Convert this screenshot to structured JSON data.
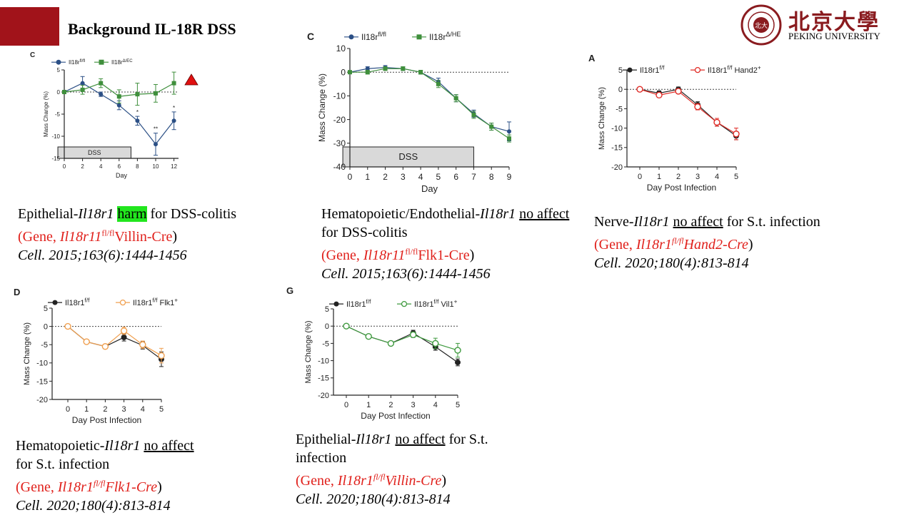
{
  "slide": {
    "title": "Background IL-18R DSS",
    "logo": {
      "cn": "北京大學",
      "en": "PEKING UNIVERSITY",
      "seal_text": "PEKING UNIVERSITY 1898"
    },
    "captions": [
      {
        "pre": "Epithelial-",
        "gene": "Il18r1",
        "mid": " ",
        "effect": "harm",
        "post": " for DSS-colitis",
        "gene_line_a": "(Gene, ",
        "gene_line_b": "Il18r11",
        "gene_line_sup": "fl/fl",
        "gene_line_c": "Villin-Cre",
        "gene_line_d": ")",
        "ref": "Cell. 2015;163(6):1444-1456"
      },
      {
        "pre": "Hematopoietic/Endothelial-",
        "gene": "Il18r1",
        "mid": " ",
        "effect": "no affect",
        "post": " for DSS-colitis",
        "gene_line_a": "(Gene, ",
        "gene_line_b": "Il18r11",
        "gene_line_sup": "fl/fl",
        "gene_line_c": "Flk1-Cre",
        "gene_line_d": ")",
        "ref": "Cell. 2015;163(6):1444-1456"
      },
      {
        "pre": "Nerve-",
        "gene": "Il18r1",
        "mid": " ",
        "effect": "no affect",
        "post": " for S.t. infection",
        "gene_line_a": "(Gene, ",
        "gene_line_b": "Il18r1",
        "gene_line_sup": "fl/fl",
        "gene_line_c": "Hand2-Cre",
        "gene_line_d": ")",
        "ref": "Cell. 2020;180(4):813-814"
      },
      {
        "pre": "Hematopoietic-",
        "gene": "Il18r1",
        "mid": " ",
        "effect": "no affect",
        "post": " for S.t. infection",
        "gene_line_a": "(Gene, ",
        "gene_line_b": "Il18r1",
        "gene_line_sup": "fl/fl",
        "gene_line_c": "Flk1-Cre",
        "gene_line_d": ")",
        "ref": "Cell. 2020;180(4):813-814"
      },
      {
        "pre": "Epithelial-",
        "gene": "Il18r1",
        "mid": " ",
        "effect": "no affect",
        "post": " for S.t. infection",
        "gene_line_a": "(Gene, ",
        "gene_line_b": "Il18r1",
        "gene_line_sup": "fl/fl",
        "gene_line_c": "Villin-Cre",
        "gene_line_d": ")",
        "ref": "Cell. 2020;180(4):813-814"
      }
    ]
  },
  "chart_data": [
    {
      "type": "line",
      "panel": "C",
      "xlabel": "Day",
      "ylabel": "Mass Change (%)",
      "x": [
        0,
        2,
        4,
        6,
        8,
        10,
        12
      ],
      "xticks": [
        0,
        2,
        4,
        6,
        8,
        10,
        12
      ],
      "yticks": [
        5,
        0,
        -5,
        -10,
        -15
      ],
      "xlim": [
        0,
        12.5
      ],
      "ylim": [
        -15,
        5
      ],
      "bar_label": "DSS",
      "bar_range": [
        -0.7,
        7.3
      ],
      "significance": [
        {
          "x": 8,
          "text": "*"
        },
        {
          "x": 10,
          "text": "**"
        },
        {
          "x": 12,
          "text": "*"
        }
      ],
      "marker_triangle": true,
      "series": [
        {
          "name": "Il18r",
          "sup": "fl/fl",
          "color": "#2b4f85",
          "marker": "dot",
          "values": [
            0,
            2,
            -0.5,
            -3,
            -6.5,
            -11.8,
            -6.5
          ],
          "err": [
            0.3,
            1.5,
            0.5,
            1,
            1,
            2.5,
            2
          ]
        },
        {
          "name": "Il18r",
          "sup": "Δ/EC",
          "color": "#3f8f3c",
          "marker": "square",
          "values": [
            0,
            0.5,
            2,
            -1,
            -0.5,
            -0.3,
            2
          ],
          "err": [
            0.3,
            1,
            1,
            1.5,
            2.5,
            2,
            2.5
          ]
        }
      ]
    },
    {
      "type": "line",
      "panel": "C",
      "xlabel": "Day",
      "ylabel": "Mass Change (%)",
      "x": [
        0,
        1,
        2,
        3,
        4,
        5,
        6,
        7,
        8,
        9
      ],
      "xticks": [
        0,
        1,
        2,
        3,
        4,
        5,
        6,
        7,
        8,
        9
      ],
      "yticks": [
        10,
        0,
        -10,
        -20,
        -30,
        -40
      ],
      "xlim": [
        0,
        9
      ],
      "ylim": [
        -40,
        10
      ],
      "bar_label": "DSS",
      "bar_range": [
        -0.4,
        7
      ],
      "series": [
        {
          "name": "Il18r",
          "sup": "fl/fl",
          "color": "#2b4f85",
          "marker": "dot",
          "values": [
            0,
            1.5,
            2,
            1.5,
            0,
            -4,
            -11,
            -17.5,
            -23,
            -25
          ],
          "err": [
            0.5,
            0.8,
            0.8,
            0.8,
            0.8,
            1.5,
            1.5,
            1.5,
            1.5,
            4
          ]
        },
        {
          "name": "Il18r",
          "sup": "Δ/HE",
          "color": "#3f8f3c",
          "marker": "square",
          "values": [
            0,
            0,
            1.5,
            1.5,
            0,
            -5,
            -11,
            -18,
            -23,
            -28
          ],
          "err": [
            0.5,
            0.8,
            0.8,
            0.8,
            0.8,
            1.5,
            1.5,
            1.5,
            1.5,
            1.5
          ]
        }
      ]
    },
    {
      "type": "line",
      "panel": "A",
      "xlabel": "Day Post Infection",
      "ylabel": "Mass Change (%)",
      "x": [
        0,
        1,
        2,
        3,
        4,
        5
      ],
      "xticks": [
        0,
        1,
        2,
        3,
        4,
        5
      ],
      "yticks": [
        5,
        0,
        -5,
        -10,
        -15,
        -20
      ],
      "xlim": [
        0,
        5
      ],
      "ylim": [
        -20,
        5
      ],
      "series": [
        {
          "name": "Il18r1",
          "sup": "f/f",
          "color": "#222222",
          "marker": "dot",
          "values": [
            0,
            -1,
            0,
            -4,
            -8.5,
            -12
          ],
          "err": [
            0.3,
            0.6,
            0.6,
            0.8,
            1,
            1
          ]
        },
        {
          "name": "Il18r1",
          "sup": "f/f",
          "suffix": "Hand2",
          "suffix_sup": "+",
          "color": "#e02b25",
          "marker": "open",
          "values": [
            0,
            -1.5,
            -0.5,
            -4.5,
            -8.5,
            -11.5
          ],
          "err": [
            0.3,
            0.6,
            0.6,
            0.8,
            1,
            1.5
          ]
        }
      ]
    },
    {
      "type": "line",
      "panel": "D",
      "xlabel": "Day Post Infection",
      "ylabel": "Mass Change (%)",
      "x": [
        0,
        1,
        2,
        3,
        4,
        5
      ],
      "xticks": [
        0,
        1,
        2,
        3,
        4,
        5
      ],
      "yticks": [
        5,
        0,
        -5,
        -10,
        -15,
        -20
      ],
      "xlim": [
        0,
        5
      ],
      "ylim": [
        -20,
        5
      ],
      "series": [
        {
          "name": "Il18r1",
          "sup": "f/f",
          "color": "#222222",
          "marker": "dot",
          "values": [
            0,
            -4.2,
            -5.5,
            -3,
            -5.2,
            -9
          ],
          "err": [
            0.3,
            0.5,
            0.6,
            1,
            1,
            2
          ]
        },
        {
          "name": "Il18r1",
          "sup": "f/f",
          "suffix": "Flk1",
          "suffix_sup": "+",
          "color": "#f0a050",
          "marker": "open",
          "values": [
            0,
            -4.2,
            -5.5,
            -1.2,
            -5,
            -8
          ],
          "err": [
            0.3,
            0.5,
            0.6,
            1,
            1,
            2
          ]
        }
      ]
    },
    {
      "type": "line",
      "panel": "G",
      "xlabel": "Day Post Infection",
      "ylabel": "Mass Change (%)",
      "x": [
        0,
        1,
        2,
        3,
        4,
        5
      ],
      "xticks": [
        0,
        1,
        2,
        3,
        4,
        5
      ],
      "yticks": [
        5,
        0,
        -5,
        -10,
        -15,
        -20
      ],
      "xlim": [
        0,
        5
      ],
      "ylim": [
        -20,
        5
      ],
      "series": [
        {
          "name": "Il18r1",
          "sup": "f/f",
          "color": "#222222",
          "marker": "dot",
          "values": [
            0,
            -3,
            -5,
            -2,
            -6,
            -10.5
          ],
          "err": [
            0.3,
            0.5,
            0.6,
            0.8,
            1,
            1
          ]
        },
        {
          "name": "Il18r1",
          "sup": "f/f",
          "suffix": "Vil1",
          "suffix_sup": "+",
          "color": "#3f9a3f",
          "marker": "open",
          "values": [
            0,
            -3,
            -5,
            -2.5,
            -5,
            -7
          ],
          "err": [
            0.3,
            0.5,
            0.6,
            0.8,
            1.5,
            2
          ]
        }
      ]
    }
  ]
}
